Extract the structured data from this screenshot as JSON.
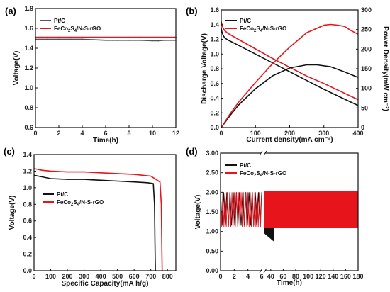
{
  "chart_data": [
    {
      "panel": "(a)",
      "type": "line",
      "xlabel": "Time(h)",
      "ylabel": "Voltage(V)",
      "xlim": [
        0,
        12
      ],
      "ylim": [
        0.6,
        1.8
      ],
      "xticks": [
        0,
        2,
        4,
        6,
        8,
        10,
        12
      ],
      "yticks": [
        0.6,
        0.8,
        1.0,
        1.2,
        1.4,
        1.6,
        1.8
      ],
      "grid": false,
      "legend_position": "top-left",
      "series": [
        {
          "name": "Pt/C",
          "color": "#555555",
          "x": [
            0,
            1,
            2,
            3,
            4,
            5,
            6,
            7,
            8,
            9,
            10,
            10.5,
            11,
            12
          ],
          "y": [
            1.49,
            1.49,
            1.49,
            1.49,
            1.49,
            1.485,
            1.48,
            1.48,
            1.48,
            1.48,
            1.475,
            1.475,
            1.48,
            1.48
          ]
        },
        {
          "name": "FeCo2S4/N-S-rGO",
          "color": "#e8141c",
          "x": [
            0,
            1,
            2,
            3,
            4,
            5,
            6,
            7,
            8,
            9,
            10,
            11,
            12
          ],
          "y": [
            1.51,
            1.51,
            1.51,
            1.51,
            1.51,
            1.51,
            1.51,
            1.51,
            1.51,
            1.51,
            1.51,
            1.51,
            1.51
          ]
        }
      ]
    },
    {
      "panel": "(b)",
      "type": "line",
      "xlabel": "Current density(mA cm⁻²)",
      "ylabel": "Discharge Voltage(V)",
      "ylabel_right": "Power Density(mW cm⁻²)",
      "xlim": [
        0,
        400
      ],
      "ylim": [
        0,
        1.6
      ],
      "ylim_right": [
        0,
        300
      ],
      "xticks": [
        0,
        100,
        200,
        300,
        400
      ],
      "yticks": [
        0.0,
        0.2,
        0.4,
        0.6,
        0.8,
        1.0,
        1.2,
        1.4,
        1.6
      ],
      "yticks_right": [
        0,
        50,
        100,
        150,
        200,
        250,
        300
      ],
      "grid": false,
      "legend_position": "top-left",
      "series": [
        {
          "name": "Pt/C",
          "axis": "left",
          "color": "#111111",
          "x": [
            0,
            2,
            5,
            10,
            20,
            50,
            100,
            150,
            200,
            250,
            300,
            350,
            400
          ],
          "y": [
            1.35,
            1.3,
            1.26,
            1.22,
            1.19,
            1.12,
            1.0,
            0.88,
            0.76,
            0.64,
            0.52,
            0.41,
            0.3
          ]
        },
        {
          "name": "FeCo2S4/N-S-rGO",
          "axis": "left",
          "color": "#e8141c",
          "x": [
            0,
            2,
            5,
            10,
            20,
            50,
            100,
            150,
            200,
            250,
            300,
            350,
            400
          ],
          "y": [
            1.44,
            1.4,
            1.36,
            1.32,
            1.28,
            1.2,
            1.07,
            0.94,
            0.82,
            0.7,
            0.6,
            0.49,
            0.38
          ]
        },
        {
          "name": "Pt/C",
          "axis": "right",
          "color": "#111111",
          "x": [
            0,
            25,
            50,
            100,
            150,
            200,
            250,
            280,
            320,
            360,
            400
          ],
          "y": [
            0,
            30,
            57,
            99,
            132,
            152,
            160,
            160,
            155,
            142,
            128
          ]
        },
        {
          "name": "FeCo2S4/N-S-rGO",
          "axis": "right",
          "color": "#e8141c",
          "x": [
            0,
            25,
            50,
            100,
            150,
            200,
            250,
            300,
            320,
            340,
            360,
            380,
            400
          ],
          "y": [
            0,
            34,
            64,
            115,
            163,
            205,
            242,
            261,
            263,
            261,
            258,
            247,
            238
          ]
        }
      ]
    },
    {
      "panel": "(c)",
      "type": "line",
      "xlabel": "Specific Capacity(mA h/g)",
      "ylabel": "Voltage(V)",
      "xlim": [
        0,
        850
      ],
      "ylim": [
        0,
        1.4
      ],
      "xticks": [
        0,
        100,
        200,
        300,
        400,
        500,
        600,
        700,
        800
      ],
      "yticks": [
        0.0,
        0.2,
        0.4,
        0.6,
        0.8,
        1.0,
        1.2,
        1.4
      ],
      "grid": false,
      "legend_position": "center-left",
      "series": [
        {
          "name": "Pt/C",
          "color": "#111111",
          "x": [
            0,
            50,
            100,
            200,
            300,
            400,
            500,
            600,
            680,
            715,
            722,
            725,
            727
          ],
          "y": [
            1.15,
            1.13,
            1.11,
            1.1,
            1.1,
            1.09,
            1.08,
            1.07,
            1.06,
            1.05,
            0.8,
            0.3,
            0.0
          ]
        },
        {
          "name": "FeCo2S4/N-S-rGO",
          "color": "#e8141c",
          "x": [
            0,
            50,
            100,
            200,
            300,
            400,
            500,
            600,
            700,
            755,
            763,
            766,
            768
          ],
          "y": [
            1.23,
            1.21,
            1.2,
            1.19,
            1.19,
            1.18,
            1.17,
            1.16,
            1.14,
            1.07,
            0.8,
            0.3,
            0.0
          ]
        }
      ]
    },
    {
      "panel": "(d)",
      "type": "line",
      "xlabel": "Time(h)",
      "ylabel": "Voltage(V)",
      "xlim_segments": [
        [
          0,
          6
        ],
        [
          30,
          180
        ]
      ],
      "ylim": [
        0,
        3.0
      ],
      "xticks": [
        0,
        2,
        4,
        6,
        40,
        60,
        80,
        100,
        120,
        140,
        160,
        180
      ],
      "yticks": [
        0.0,
        0.5,
        1.0,
        1.5,
        2.0,
        2.5,
        3.0
      ],
      "grid": false,
      "legend_position": "top-left",
      "series": [
        {
          "name": "Pt/C",
          "color": "#111111",
          "charge_voltage_end": [
            2.0,
            1.95,
            1.85
          ],
          "discharge_voltage_end": [
            1.15,
            0.95,
            0.75
          ],
          "time_end_h": 45
        },
        {
          "name": "FeCo2S4/N-S-rGO",
          "color": "#e8141c",
          "charge_voltage": 2.04,
          "discharge_voltage": 1.1,
          "time_end_h": 180
        }
      ]
    }
  ]
}
